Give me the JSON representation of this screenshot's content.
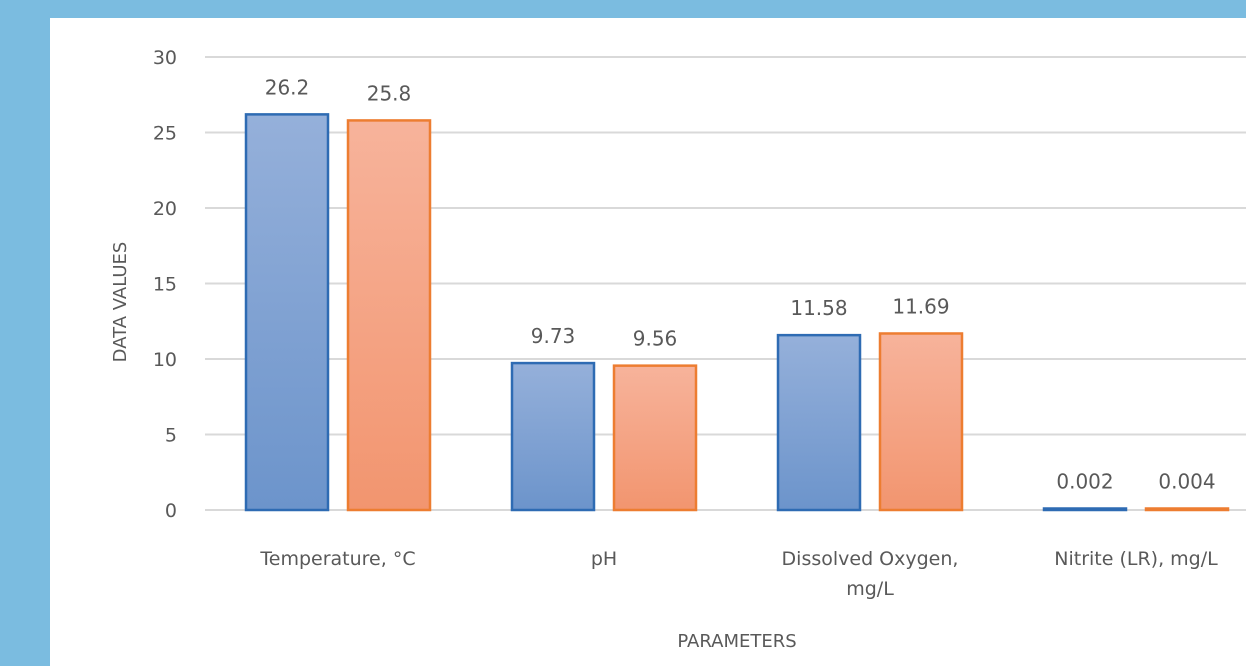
{
  "colors": {
    "page_background": "#7bbce0",
    "panel_background": "#ffffff",
    "gridline": "#d9d9d9",
    "text": "#595959"
  },
  "chart_data": {
    "type": "bar",
    "categories": [
      [
        "Temperature, °C"
      ],
      [
        "pH"
      ],
      [
        "Dissolved Oxygen,",
        "mg/L"
      ],
      [
        "Nitrite (LR), mg/L"
      ]
    ],
    "series": [
      {
        "values": [
          26.2,
          9.73,
          11.58,
          0.002
        ],
        "labels": [
          "26.2",
          "9.73",
          "11.58",
          "0.002"
        ],
        "fill_top": "#95b0da",
        "fill_bottom": "#6c94cb",
        "stroke": "#2e6bb3"
      },
      {
        "values": [
          25.8,
          9.56,
          11.69,
          0.004
        ],
        "labels": [
          "25.8",
          "9.56",
          "11.69",
          "0.004"
        ],
        "fill_top": "#f7b39b",
        "fill_bottom": "#f2956f",
        "stroke": "#ed7d31"
      }
    ],
    "xlabel": "PARAMETERS",
    "ylabel": "DATA VALUES",
    "ylim": [
      0,
      30
    ],
    "yticks": [
      0,
      5,
      10,
      15,
      20,
      25,
      30
    ],
    "grid": true
  }
}
